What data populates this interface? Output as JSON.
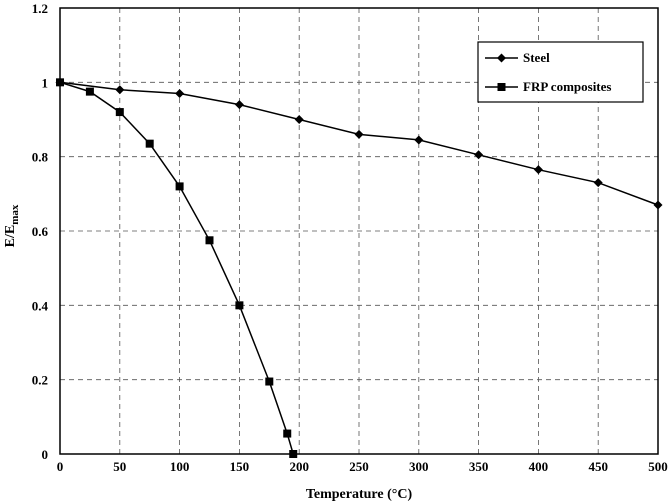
{
  "chart_data": {
    "type": "line",
    "title": "",
    "xlabel": "Temperature (°C)",
    "ylabel_main": "E/E",
    "ylabel_sub": "max",
    "xlim": [
      0,
      500
    ],
    "ylim": [
      0,
      1.2
    ],
    "x_ticks": [
      0,
      50,
      100,
      150,
      200,
      250,
      300,
      350,
      400,
      450,
      500
    ],
    "y_ticks": [
      "0",
      "0.2",
      "0.4",
      "0.6",
      "0.8",
      "1",
      "1.2"
    ],
    "y_tick_values": [
      0,
      0.2,
      0.4,
      0.6,
      0.8,
      1.0,
      1.2
    ],
    "grid": true,
    "legend_position": "top-right",
    "series": [
      {
        "name": "Steel",
        "marker": "diamond",
        "x": [
          0,
          50,
          100,
          150,
          200,
          250,
          300,
          350,
          400,
          450,
          500
        ],
        "y": [
          1.0,
          0.98,
          0.97,
          0.94,
          0.9,
          0.86,
          0.845,
          0.805,
          0.765,
          0.73,
          0.67
        ]
      },
      {
        "name": "FRP composites",
        "marker": "square",
        "x": [
          0,
          25,
          50,
          75,
          100,
          125,
          150,
          175,
          190,
          195
        ],
        "y": [
          1.0,
          0.975,
          0.92,
          0.835,
          0.72,
          0.575,
          0.4,
          0.195,
          0.055,
          0.0
        ]
      }
    ]
  }
}
